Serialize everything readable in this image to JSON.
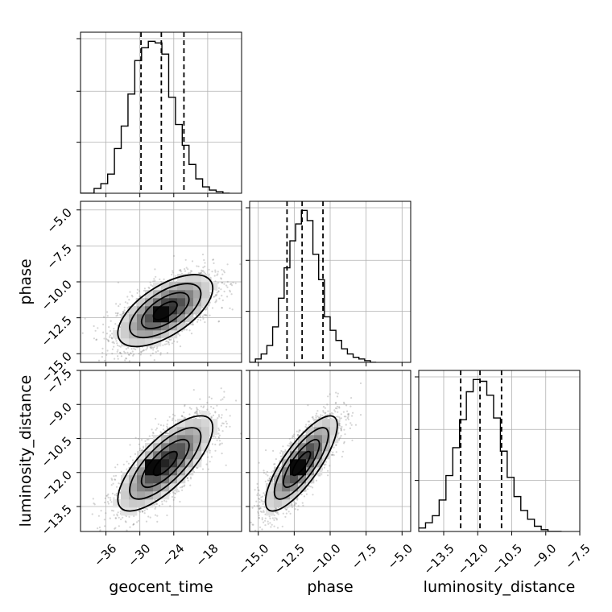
{
  "chart_data": {
    "type": "corner",
    "parameters": [
      "geocent_time",
      "phase",
      "luminosity_distance"
    ],
    "grid": true,
    "quantile_lines": "dashed",
    "axes": {
      "geocent_time": {
        "label": "geocent_time",
        "range": [
          -40.5,
          -12.0
        ],
        "ticks": [
          -36,
          -30,
          -24,
          -18
        ],
        "tick_labels": [
          "−36",
          "−30",
          "−24",
          "−18"
        ],
        "quantiles": [
          -29.8,
          -26.2,
          -22.2
        ]
      },
      "phase": {
        "label": "phase",
        "range": [
          -15.6,
          -4.4
        ],
        "ticks": [
          -15.0,
          -12.5,
          -10.0,
          -7.5,
          -5.0
        ],
        "tick_labels": [
          "−15.0",
          "−12.5",
          "−10.0",
          "−7.5",
          "−5.0"
        ],
        "quantiles": [
          -13.0,
          -11.95,
          -10.5
        ]
      },
      "luminosity_distance": {
        "label": "luminosity_distance",
        "range": [
          -14.6,
          -7.5
        ],
        "ticks": [
          -13.5,
          -12.0,
          -10.5,
          -9.0,
          -7.5
        ],
        "tick_labels": [
          "−13.5",
          "−12.0",
          "−10.5",
          "−9.0",
          "−7.5"
        ],
        "quantiles": [
          -12.75,
          -11.9,
          -10.95
        ]
      }
    },
    "marginals": [
      {
        "parameter": "geocent_time",
        "bin_edges": [
          -40.5,
          -39.3,
          -38.1,
          -36.9,
          -35.7,
          -34.5,
          -33.3,
          -32.1,
          -30.9,
          -29.7,
          -28.5,
          -27.3,
          -26.1,
          -24.9,
          -23.7,
          -22.5,
          -21.3,
          -20.1,
          -18.9,
          -17.7,
          -16.5,
          -15.3,
          -14.1
        ],
        "counts": [
          0,
          0,
          3,
          6,
          12,
          28,
          42,
          62,
          83,
          91,
          95,
          94,
          87,
          60,
          43,
          30,
          18,
          9,
          4,
          2,
          1,
          0
        ]
      },
      {
        "parameter": "phase",
        "bin_edges": [
          -15.6,
          -15.2,
          -14.8,
          -14.4,
          -14.0,
          -13.6,
          -13.2,
          -12.8,
          -12.4,
          -12.0,
          -11.6,
          -11.2,
          -10.8,
          -10.4,
          -10.0,
          -9.6,
          -9.2,
          -8.8,
          -8.4,
          -8.0,
          -7.6,
          -7.2,
          -6.8
        ],
        "counts": [
          0,
          2,
          5,
          10,
          21,
          38,
          56,
          72,
          82,
          90,
          84,
          64,
          49,
          27,
          19,
          13,
          8,
          5,
          3,
          2,
          1,
          0
        ]
      },
      {
        "parameter": "luminosity_distance",
        "bin_edges": [
          -14.6,
          -14.3,
          -14.0,
          -13.7,
          -13.4,
          -13.1,
          -12.8,
          -12.5,
          -12.2,
          -11.9,
          -11.6,
          -11.3,
          -11.0,
          -10.7,
          -10.4,
          -10.1,
          -9.8,
          -9.5,
          -9.2,
          -8.9,
          -8.6,
          -8.3
        ],
        "counts": [
          2,
          5,
          9,
          18,
          32,
          48,
          64,
          80,
          87,
          86,
          78,
          65,
          46,
          31,
          20,
          12,
          7,
          3,
          1,
          0,
          0
        ]
      }
    ],
    "joints": [
      {
        "x": "geocent_time",
        "y": "phase",
        "mean": [
          -25.5,
          -12.0
        ],
        "sd": [
          4.2,
          1.25
        ],
        "correlation": 0.62,
        "peak": [
          -26.5,
          -12.2
        ]
      },
      {
        "x": "geocent_time",
        "y": "luminosity_distance",
        "mean": [
          -25.5,
          -11.6
        ],
        "sd": [
          4.2,
          1.05
        ],
        "correlation": 0.75,
        "peak": [
          -27.0,
          -11.7
        ]
      },
      {
        "x": "phase",
        "y": "luminosity_distance",
        "mean": [
          -12.0,
          -11.6
        ],
        "sd": [
          1.25,
          1.05
        ],
        "correlation": 0.8,
        "peak": [
          -12.3,
          -11.8
        ]
      }
    ],
    "contour_levels_sigma": [
      0.5,
      1.0,
      1.5,
      2.0
    ]
  }
}
